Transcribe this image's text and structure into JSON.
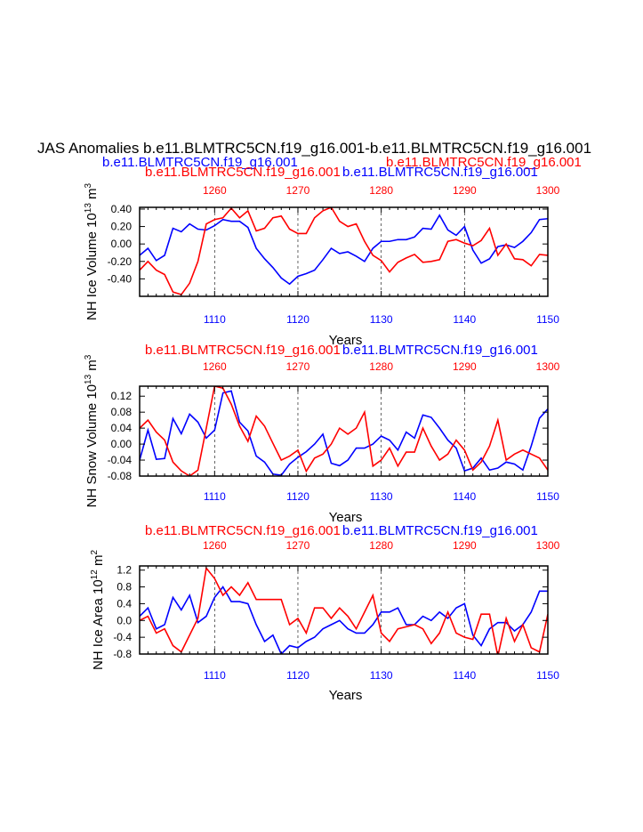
{
  "page": {
    "title": "JAS Anomalies b.e11.BLMTRC5CN.f19_g16.001-b.e11.BLMTRC5CN.f19_g16.001",
    "legend_blue_top": "b.e11.BLMTRC5CN.f19_g16.001",
    "legend_red_top": "b.e11.BLMTRC5CN.f19_g16.001",
    "colors": {
      "blue": "#0000ff",
      "red": "#ff0000",
      "black": "#000000"
    }
  },
  "chart_data": [
    {
      "type": "line",
      "ylabel": "NH Ice Volume 10",
      "ylabel_sup": "13",
      "ylabel_unit": " m",
      "ylabel_unit_sup": "3",
      "xlabel": "Years",
      "legend_red": "b.e11.BLMTRC5CN.f19_g16.001",
      "legend_blue": "b.e11.BLMTRC5CN.f19_g16.001",
      "ylim": [
        -0.6,
        0.42
      ],
      "yticks": [
        0.4,
        0.2,
        0.0,
        -0.2,
        -0.4
      ],
      "yticklabels": [
        "0.40",
        "0.20",
        "0.00",
        "-0.20",
        "-0.40"
      ],
      "xlim": [
        1101,
        1150
      ],
      "xticks": [
        1110,
        1120,
        1130,
        1140,
        1150
      ],
      "xticklabels": [
        "1110",
        "1120",
        "1130",
        "1140",
        "1150"
      ],
      "top_xlim": [
        1251,
        1300
      ],
      "top_xticks": [
        1260,
        1270,
        1280,
        1290,
        1300
      ],
      "top_xticklabels": [
        "1260",
        "1270",
        "1280",
        "1290",
        "1300"
      ],
      "grid_x": [
        1110,
        1120,
        1130,
        1140
      ],
      "series": [
        {
          "name": "b.e11.BLMTRC5CN.f19_g16.001",
          "color": "#0000ff",
          "axis": "bottom",
          "x_start": 1101,
          "values": [
            -0.13,
            -0.05,
            -0.19,
            -0.13,
            0.18,
            0.14,
            0.23,
            0.17,
            0.16,
            0.21,
            0.28,
            0.26,
            0.26,
            0.19,
            -0.05,
            -0.17,
            -0.27,
            -0.39,
            -0.46,
            -0.37,
            -0.34,
            -0.3,
            -0.18,
            -0.05,
            -0.11,
            -0.09,
            -0.14,
            -0.2,
            -0.05,
            0.03,
            0.03,
            0.05,
            0.05,
            0.08,
            0.18,
            0.17,
            0.33,
            0.16,
            0.1,
            0.2,
            -0.07,
            -0.22,
            -0.17,
            -0.03,
            -0.01,
            -0.04,
            0.03,
            0.13,
            0.28,
            0.29
          ]
        },
        {
          "name": "b.e11.BLMTRC5CN.f19_g16.001",
          "color": "#ff0000",
          "axis": "top",
          "x_start": 1251,
          "values": [
            -0.3,
            -0.2,
            -0.3,
            -0.35,
            -0.55,
            -0.58,
            -0.45,
            -0.2,
            0.23,
            0.28,
            0.3,
            0.41,
            0.3,
            0.38,
            0.15,
            0.18,
            0.3,
            0.32,
            0.17,
            0.12,
            0.12,
            0.3,
            0.38,
            0.42,
            0.26,
            0.2,
            0.23,
            0.03,
            -0.13,
            -0.19,
            -0.32,
            -0.21,
            -0.16,
            -0.12,
            -0.21,
            -0.2,
            -0.18,
            0.03,
            0.05,
            0.01,
            -0.02,
            0.04,
            0.18,
            -0.13,
            0.0,
            -0.17,
            -0.18,
            -0.25,
            -0.12,
            -0.13
          ]
        }
      ]
    },
    {
      "type": "line",
      "ylabel": "NH Snow Volume 10",
      "ylabel_sup": "13",
      "ylabel_unit": " m",
      "ylabel_unit_sup": "3",
      "xlabel": "Years",
      "legend_red": "b.e11.BLMTRC5CN.f19_g16.001",
      "legend_blue": "b.e11.BLMTRC5CN.f19_g16.001",
      "ylim": [
        -0.08,
        0.145
      ],
      "yticks": [
        0.12,
        0.08,
        0.04,
        0.0,
        -0.04,
        -0.08
      ],
      "yticklabels": [
        "0.12",
        "0.08",
        "0.04",
        "0.00",
        "-0.04",
        "-0.08"
      ],
      "xlim": [
        1101,
        1150
      ],
      "xticks": [
        1110,
        1120,
        1130,
        1140,
        1150
      ],
      "xticklabels": [
        "1110",
        "1120",
        "1130",
        "1140",
        "1150"
      ],
      "top_xlim": [
        1251,
        1300
      ],
      "top_xticks": [
        1260,
        1270,
        1280,
        1290,
        1300
      ],
      "top_xticklabels": [
        "1260",
        "1270",
        "1280",
        "1290",
        "1300"
      ],
      "grid_x": [
        1110,
        1120,
        1130,
        1140
      ],
      "series": [
        {
          "name": "b.e11.BLMTRC5CN.f19_g16.001",
          "color": "#0000ff",
          "axis": "bottom",
          "x_start": 1101,
          "values": [
            -0.04,
            0.035,
            -0.038,
            -0.036,
            0.064,
            0.026,
            0.075,
            0.055,
            0.015,
            0.035,
            0.128,
            0.133,
            0.055,
            0.033,
            -0.03,
            -0.045,
            -0.075,
            -0.078,
            -0.05,
            -0.033,
            -0.019,
            0.0,
            0.025,
            -0.048,
            -0.054,
            -0.04,
            -0.01,
            -0.01,
            0.0,
            0.02,
            0.01,
            -0.015,
            0.03,
            0.015,
            0.073,
            0.067,
            0.04,
            0.01,
            -0.01,
            -0.067,
            -0.06,
            -0.035,
            -0.065,
            -0.06,
            -0.045,
            -0.05,
            -0.065,
            -0.005,
            0.065,
            0.088
          ]
        },
        {
          "name": "b.e11.BLMTRC5CN.f19_g16.001",
          "color": "#ff0000",
          "axis": "top",
          "x_start": 1251,
          "values": [
            0.04,
            0.06,
            0.03,
            0.01,
            -0.045,
            -0.067,
            -0.08,
            -0.065,
            0.04,
            0.145,
            0.14,
            0.1,
            0.045,
            0.007,
            0.07,
            0.045,
            0.002,
            -0.04,
            -0.03,
            -0.015,
            -0.068,
            -0.035,
            -0.025,
            0.0,
            0.04,
            0.025,
            0.04,
            0.08,
            -0.055,
            -0.04,
            -0.01,
            -0.055,
            -0.02,
            -0.02,
            0.04,
            -0.005,
            -0.04,
            -0.025,
            0.01,
            -0.015,
            -0.065,
            -0.045,
            -0.005,
            0.06,
            -0.04,
            -0.025,
            -0.015,
            -0.025,
            -0.035,
            -0.065
          ]
        }
      ]
    },
    {
      "type": "line",
      "ylabel": "NH Ice Area 10",
      "ylabel_sup": "12",
      "ylabel_unit": " m",
      "ylabel_unit_sup": "2",
      "xlabel": "Years",
      "legend_red": "b.e11.BLMTRC5CN.f19_g16.001",
      "legend_blue": "b.e11.BLMTRC5CN.f19_g16.001",
      "ylim": [
        -0.8,
        1.3
      ],
      "yticks": [
        1.2,
        0.8,
        0.4,
        0.0,
        -0.4,
        -0.8
      ],
      "yticklabels": [
        "1.2",
        "0.8",
        "0.4",
        "0.0",
        "-0.4",
        "-0.8"
      ],
      "xlim": [
        1101,
        1150
      ],
      "xticks": [
        1110,
        1120,
        1130,
        1140,
        1150
      ],
      "xticklabels": [
        "1110",
        "1120",
        "1130",
        "1140",
        "1150"
      ],
      "top_xlim": [
        1251,
        1300
      ],
      "top_xticks": [
        1260,
        1270,
        1280,
        1290,
        1300
      ],
      "top_xticklabels": [
        "1260",
        "1270",
        "1280",
        "1290",
        "1300"
      ],
      "grid_x": [
        1110,
        1120,
        1130,
        1140
      ],
      "series": [
        {
          "name": "b.e11.BLMTRC5CN.f19_g16.001",
          "color": "#0000ff",
          "axis": "bottom",
          "x_start": 1101,
          "values": [
            0.1,
            0.3,
            -0.2,
            -0.1,
            0.55,
            0.25,
            0.6,
            -0.05,
            0.1,
            0.55,
            0.8,
            0.45,
            0.45,
            0.4,
            -0.1,
            -0.5,
            -0.35,
            -0.8,
            -0.6,
            -0.65,
            -0.5,
            -0.4,
            -0.2,
            -0.1,
            0.0,
            -0.2,
            -0.3,
            -0.3,
            -0.1,
            0.2,
            0.2,
            0.3,
            -0.1,
            -0.1,
            0.1,
            0.0,
            0.2,
            0.05,
            0.3,
            0.4,
            -0.35,
            -0.6,
            -0.2,
            -0.05,
            -0.05,
            -0.25,
            -0.1,
            0.2,
            0.7,
            0.7
          ]
        },
        {
          "name": "b.e11.BLMTRC5CN.f19_g16.001",
          "color": "#ff0000",
          "axis": "top",
          "x_start": 1251,
          "values": [
            0.0,
            0.1,
            -0.3,
            -0.2,
            -0.6,
            -0.75,
            -0.35,
            0.05,
            1.25,
            1.0,
            0.6,
            0.8,
            0.6,
            0.9,
            0.5,
            0.5,
            0.5,
            0.5,
            -0.1,
            0.05,
            -0.3,
            0.3,
            0.3,
            0.05,
            0.3,
            0.1,
            -0.2,
            0.2,
            0.6,
            -0.3,
            -0.5,
            -0.2,
            -0.15,
            -0.1,
            -0.2,
            -0.55,
            -0.3,
            0.2,
            -0.3,
            -0.4,
            -0.45,
            0.15,
            0.15,
            -0.85,
            0.05,
            -0.5,
            -0.1,
            -0.65,
            -0.75,
            0.15
          ]
        }
      ]
    }
  ]
}
